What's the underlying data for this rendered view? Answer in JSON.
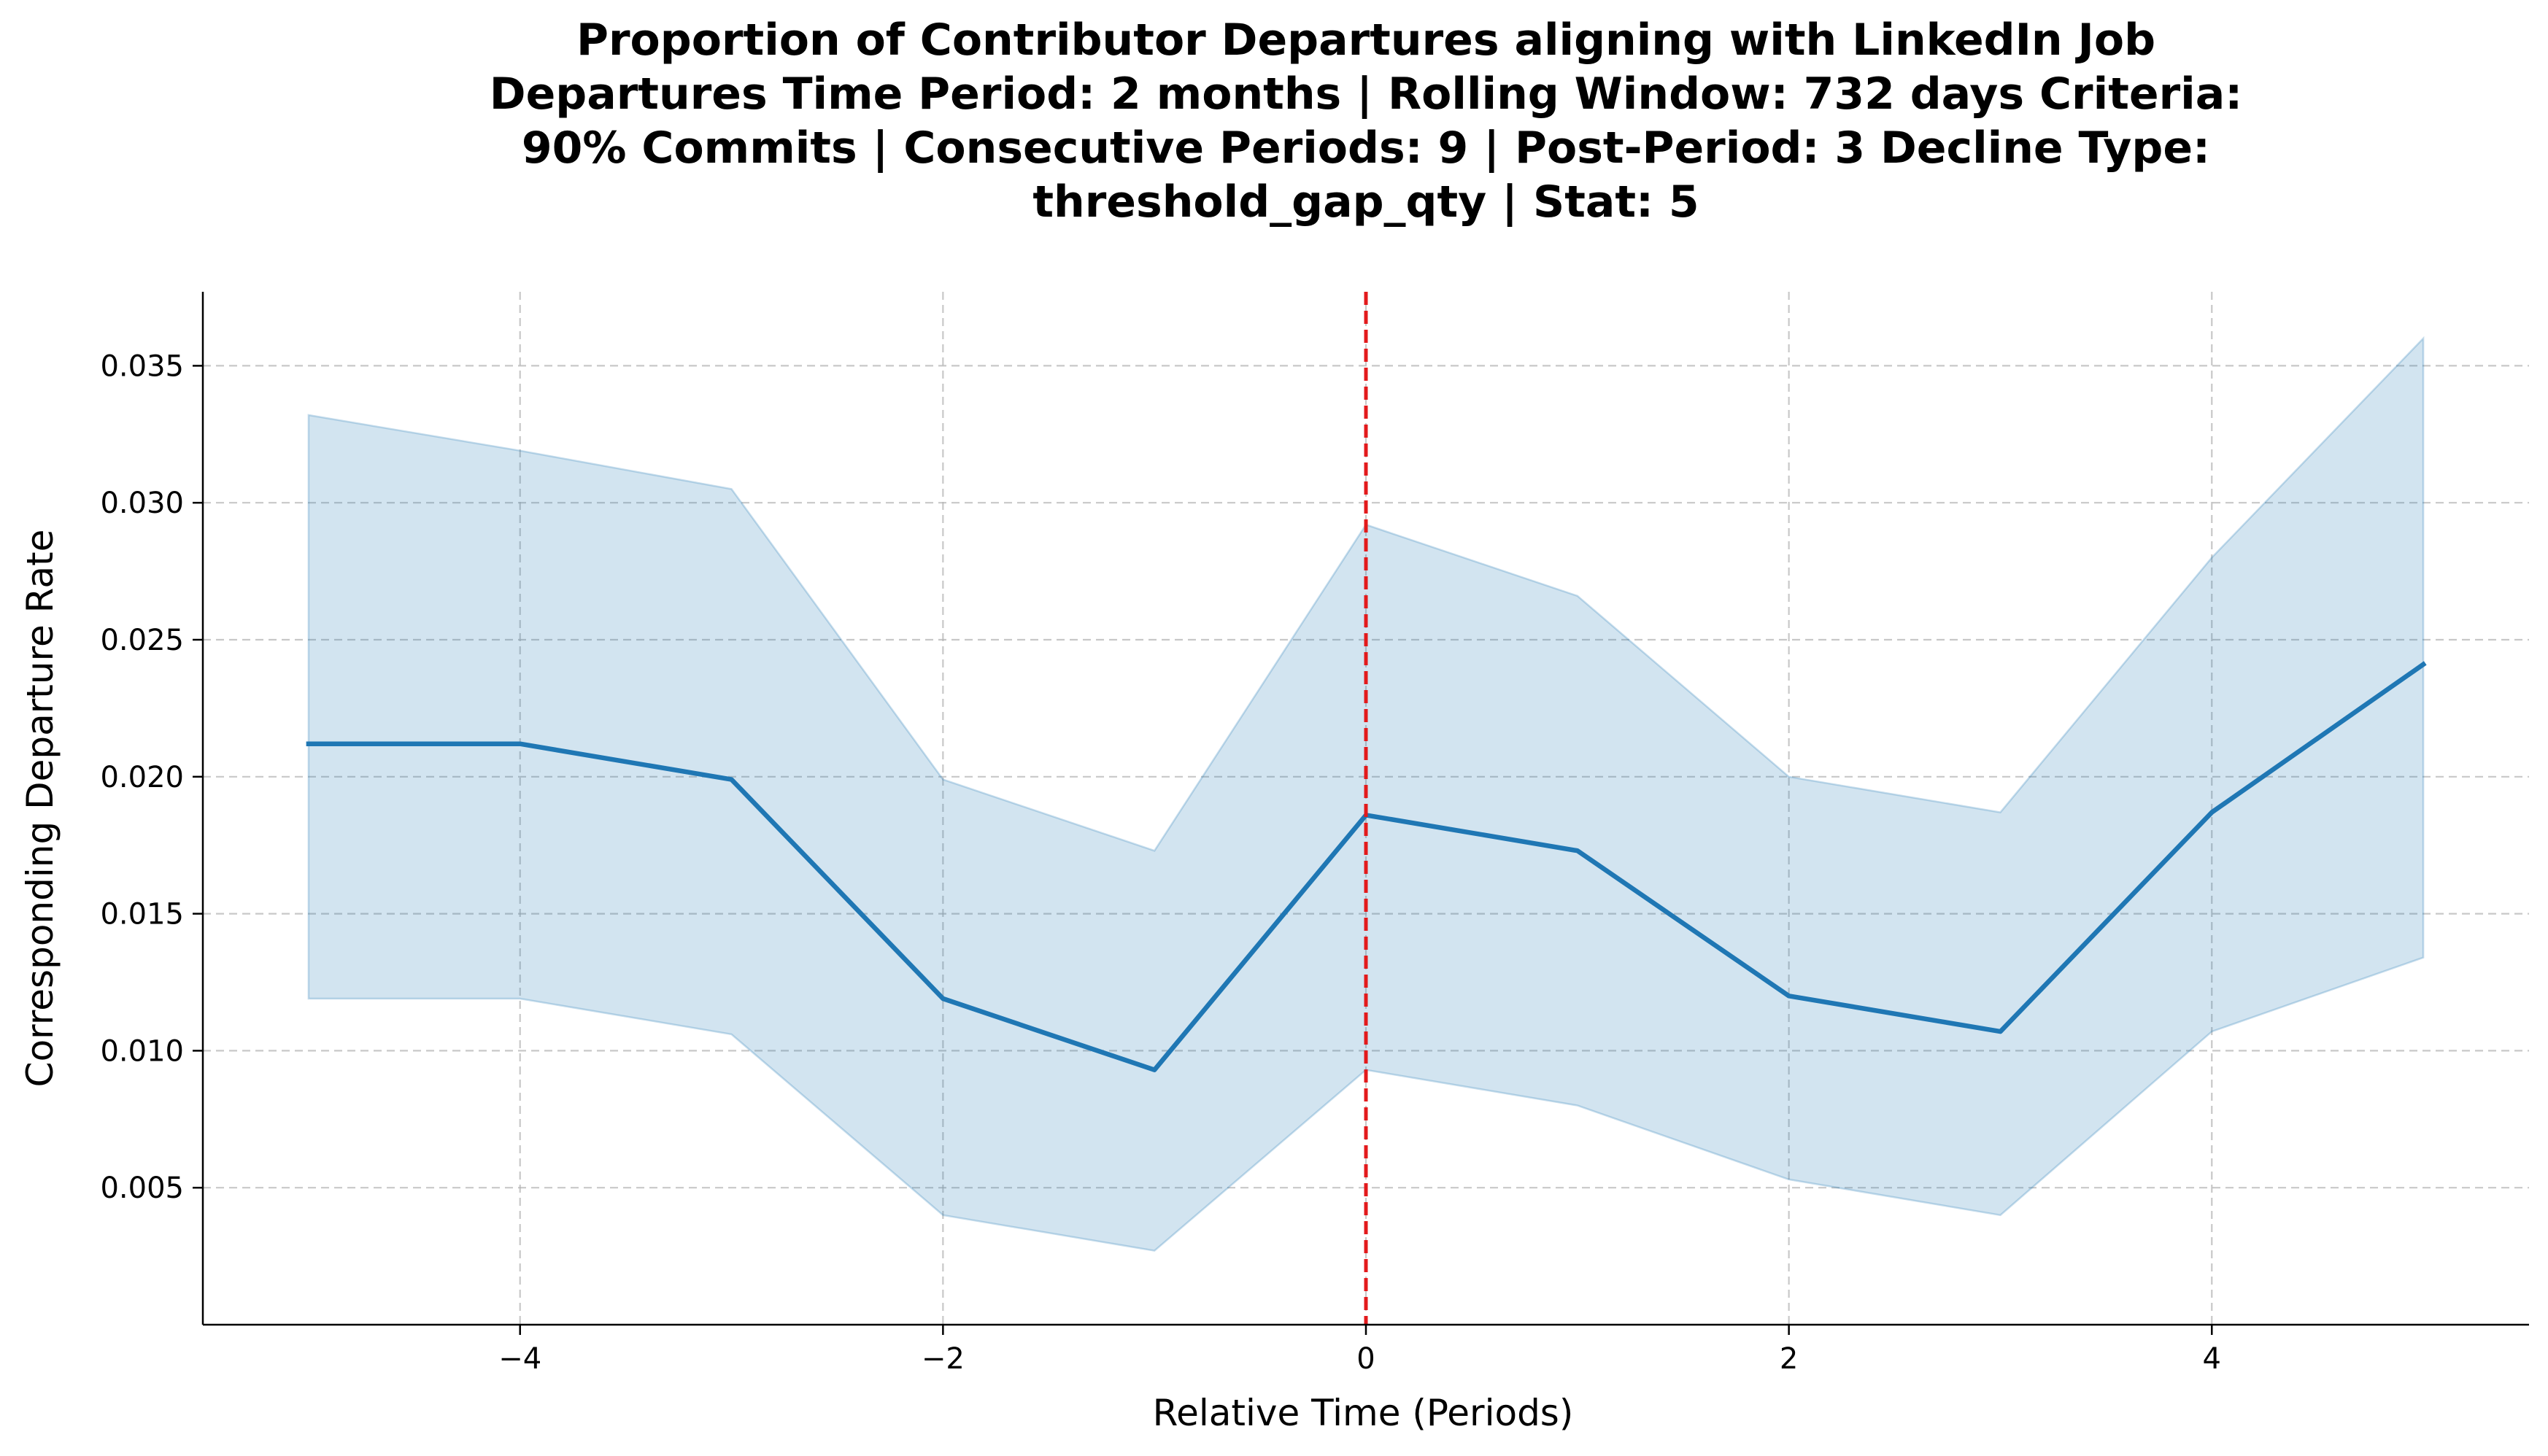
{
  "chart_data": {
    "type": "line",
    "title_lines": [
      "Proportion of Contributor Departures aligning with LinkedIn Job",
      "Departures Time Period: 2 months | Rolling Window: 732 days  Criteria:",
      "90% Commits | Consecutive Periods: 9 | Post-Period: 3 Decline Type:",
      "threshold_gap_qty | Stat: 5"
    ],
    "xlabel": "Relative Time (Periods)",
    "ylabel": "Corresponding Departure Rate",
    "xlim": [
      -5.5,
      5.5
    ],
    "ylim": [
      0.0,
      0.0377
    ],
    "x_ticks": [
      -4,
      -2,
      0,
      2,
      4
    ],
    "x_tick_labels": [
      "−4",
      "−2",
      "0",
      "2",
      "4"
    ],
    "y_ticks": [
      0.005,
      0.01,
      0.015,
      0.02,
      0.025,
      0.03,
      0.035
    ],
    "y_tick_labels": [
      "0.005",
      "0.010",
      "0.015",
      "0.020",
      "0.025",
      "0.030",
      "0.035"
    ],
    "grid": true,
    "x": [
      -5,
      -4,
      -3,
      -2,
      -1,
      0,
      1,
      2,
      3,
      4,
      5
    ],
    "series": [
      {
        "values": [
          0.0212,
          0.0212,
          0.0199,
          0.0119,
          0.0093,
          0.0186,
          0.0173,
          0.012,
          0.0107,
          0.0187,
          0.0241
        ],
        "lower": [
          0.0119,
          0.0119,
          0.0106,
          0.004,
          0.0027,
          0.0093,
          0.008,
          0.0053,
          0.004,
          0.0107,
          0.0134
        ],
        "upper": [
          0.0332,
          0.0319,
          0.0305,
          0.0199,
          0.0173,
          0.0292,
          0.0266,
          0.02,
          0.0187,
          0.028,
          0.036
        ],
        "color": "#1f77b4",
        "band_color": "#1f77b4"
      }
    ],
    "vline": {
      "x": 0,
      "color": "#e31a1c",
      "style": "dashed"
    }
  }
}
